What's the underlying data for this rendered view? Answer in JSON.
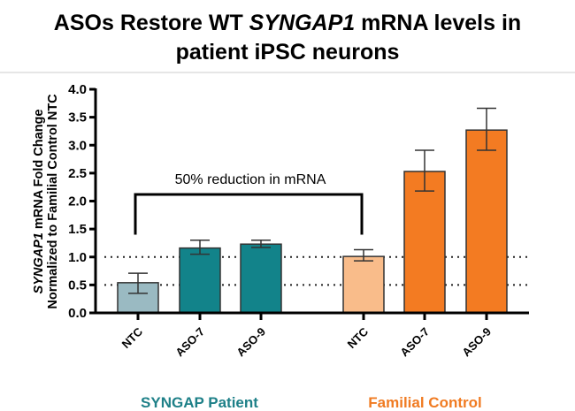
{
  "chart_data": {
    "type": "bar",
    "title_parts": [
      "ASOs Restore WT ",
      "SYNGAP1",
      " mRNA levels in",
      "patient iPSC neurons"
    ],
    "ylabel_parts": [
      "SYNGAP1",
      " mRNA Fold Change"
    ],
    "ylabel_line2": "Normalized to Familial Control NTC",
    "ylim": [
      0,
      4.0
    ],
    "yticks": [
      "0.0",
      "0.5",
      "1.0",
      "1.5",
      "2.0",
      "2.5",
      "3.0",
      "3.5",
      "4.0"
    ],
    "reference_lines": [
      0.5,
      1.0
    ],
    "annotation": {
      "text": "50% reduction in mRNA",
      "from_bar": 0,
      "to_bar": 3
    },
    "groups": [
      {
        "name": "SYNGAP Patient",
        "color": "#1e8088"
      },
      {
        "name": "Familial Control",
        "color": "#f07b22"
      }
    ],
    "bars": [
      {
        "group": 0,
        "label": "NTC",
        "value": 0.54,
        "err_low": 0.35,
        "err_high": 0.71,
        "color": "#9abac2"
      },
      {
        "group": 0,
        "label": "ASO-7",
        "value": 1.16,
        "err_low": 1.05,
        "err_high": 1.3,
        "color": "#12838a"
      },
      {
        "group": 0,
        "label": "ASO-9",
        "value": 1.23,
        "err_low": 1.17,
        "err_high": 1.3,
        "color": "#12838a"
      },
      {
        "group": 1,
        "label": "NTC",
        "value": 1.01,
        "err_low": 0.93,
        "err_high": 1.13,
        "color": "#f9bc8a"
      },
      {
        "group": 1,
        "label": "ASO-7",
        "value": 2.53,
        "err_low": 2.18,
        "err_high": 2.91,
        "color": "#f37b22"
      },
      {
        "group": 1,
        "label": "ASO-9",
        "value": 3.27,
        "err_low": 2.91,
        "err_high": 3.66,
        "color": "#f37b22"
      }
    ]
  }
}
